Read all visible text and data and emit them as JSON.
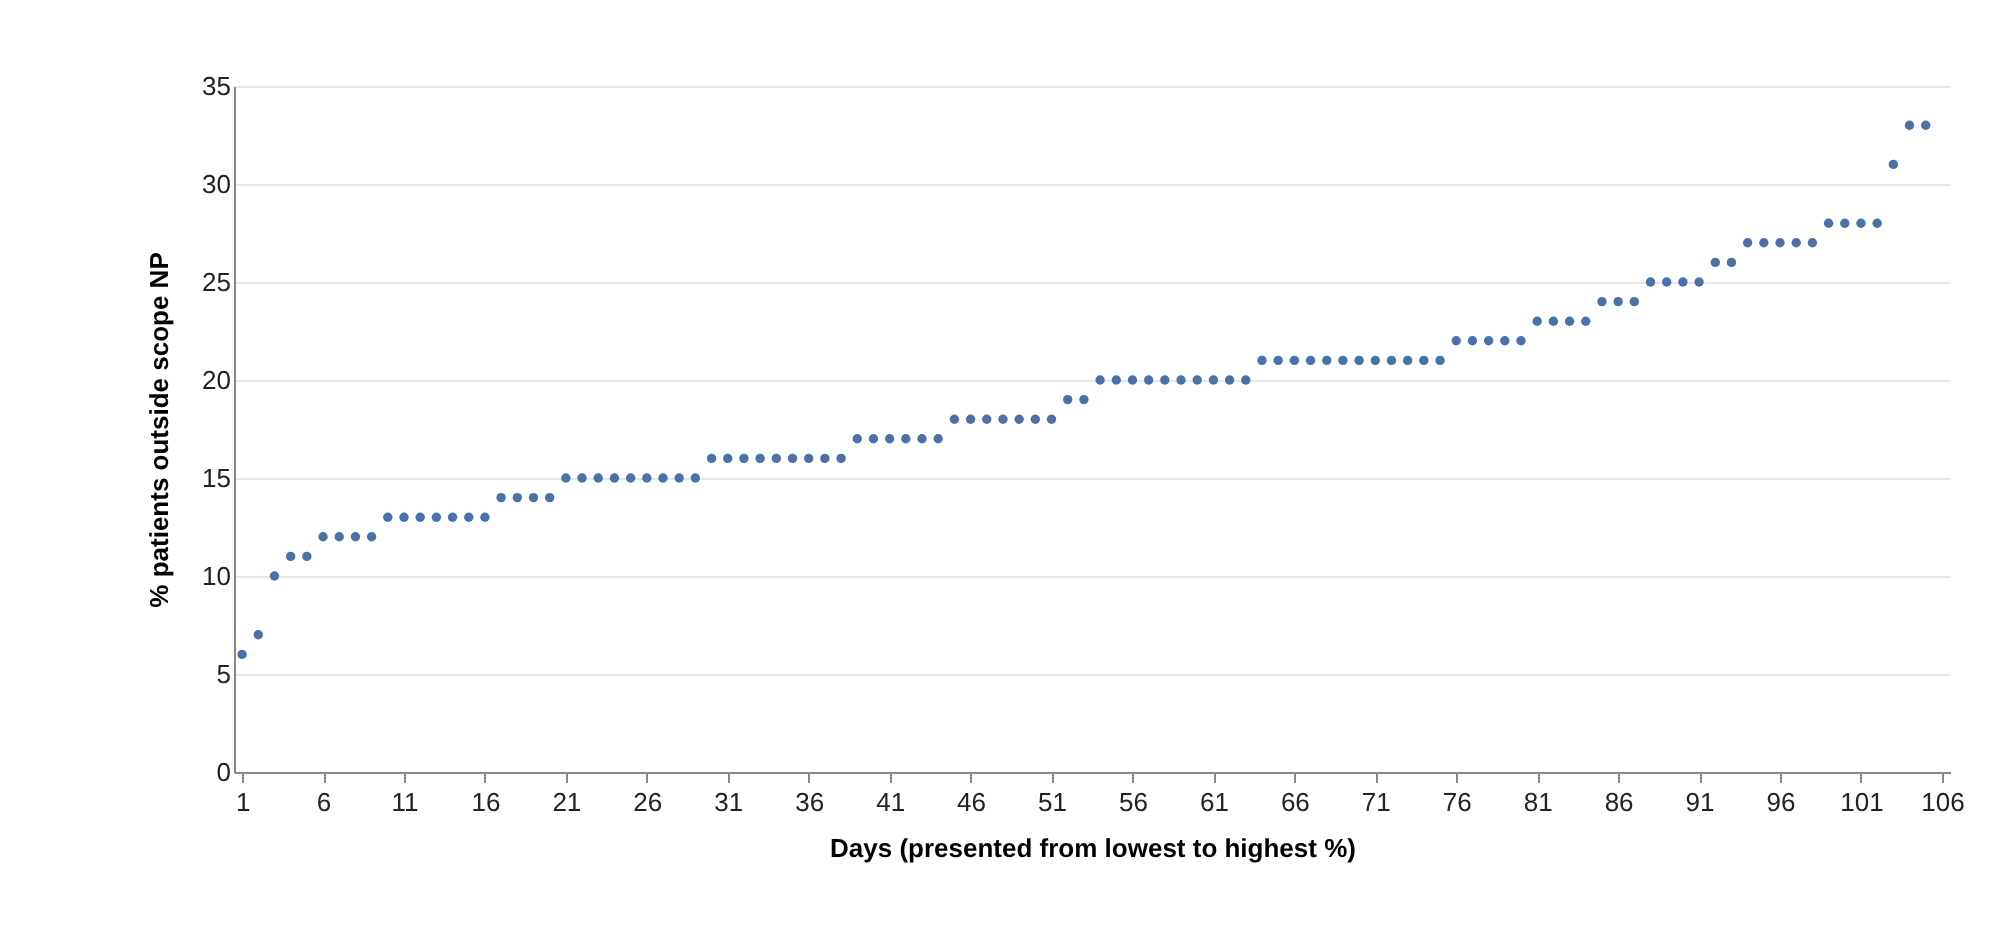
{
  "chart_data": {
    "type": "scatter",
    "xlabel": "Days (presented from lowest to highest %)",
    "ylabel": "% patients outside scope NP",
    "x": [
      1,
      2,
      3,
      4,
      5,
      6,
      7,
      8,
      9,
      10,
      11,
      12,
      13,
      14,
      15,
      16,
      17,
      18,
      19,
      20,
      21,
      22,
      23,
      24,
      25,
      26,
      27,
      28,
      29,
      30,
      31,
      32,
      33,
      34,
      35,
      36,
      37,
      38,
      39,
      40,
      41,
      42,
      43,
      44,
      45,
      46,
      47,
      48,
      49,
      50,
      51,
      52,
      53,
      54,
      55,
      56,
      57,
      58,
      59,
      60,
      61,
      62,
      63,
      64,
      65,
      66,
      67,
      68,
      69,
      70,
      71,
      72,
      73,
      74,
      75,
      76,
      77,
      78,
      79,
      80,
      81,
      82,
      83,
      84,
      85,
      86,
      87,
      88,
      89,
      90,
      91,
      92,
      93,
      94,
      95,
      96,
      97,
      98,
      99,
      100,
      101,
      102,
      103,
      104,
      105
    ],
    "series": [
      {
        "color": "#4a72a8",
        "values": [
          6,
          7,
          10,
          11,
          11,
          12,
          12,
          12,
          12,
          13,
          13,
          13,
          13,
          13,
          13,
          13,
          14,
          14,
          14,
          14,
          15,
          15,
          15,
          15,
          15,
          15,
          15,
          15,
          15,
          16,
          16,
          16,
          16,
          16,
          16,
          16,
          16,
          16,
          17,
          17,
          17,
          17,
          17,
          17,
          18,
          18,
          18,
          18,
          18,
          18,
          18,
          19,
          19,
          20,
          20,
          20,
          20,
          20,
          20,
          20,
          20,
          20,
          20,
          21,
          21,
          21,
          21,
          21,
          21,
          21,
          21,
          21,
          21,
          21,
          21,
          22,
          22,
          22,
          22,
          22,
          23,
          23,
          23,
          23,
          24,
          24,
          24,
          25,
          25,
          25,
          25,
          26,
          26,
          27,
          27,
          27,
          27,
          27,
          28,
          28,
          28,
          28,
          31,
          33,
          33
        ]
      }
    ],
    "xlim": [
      0.5,
      106.5
    ],
    "xticks": [
      1,
      6,
      11,
      16,
      21,
      26,
      31,
      36,
      41,
      46,
      51,
      56,
      61,
      66,
      71,
      76,
      81,
      86,
      91,
      96,
      101,
      106
    ],
    "ylim": [
      0,
      35
    ],
    "yticks": [
      0,
      5,
      10,
      15,
      20,
      25,
      30,
      35
    ],
    "grid": "y",
    "marker": "circle"
  }
}
